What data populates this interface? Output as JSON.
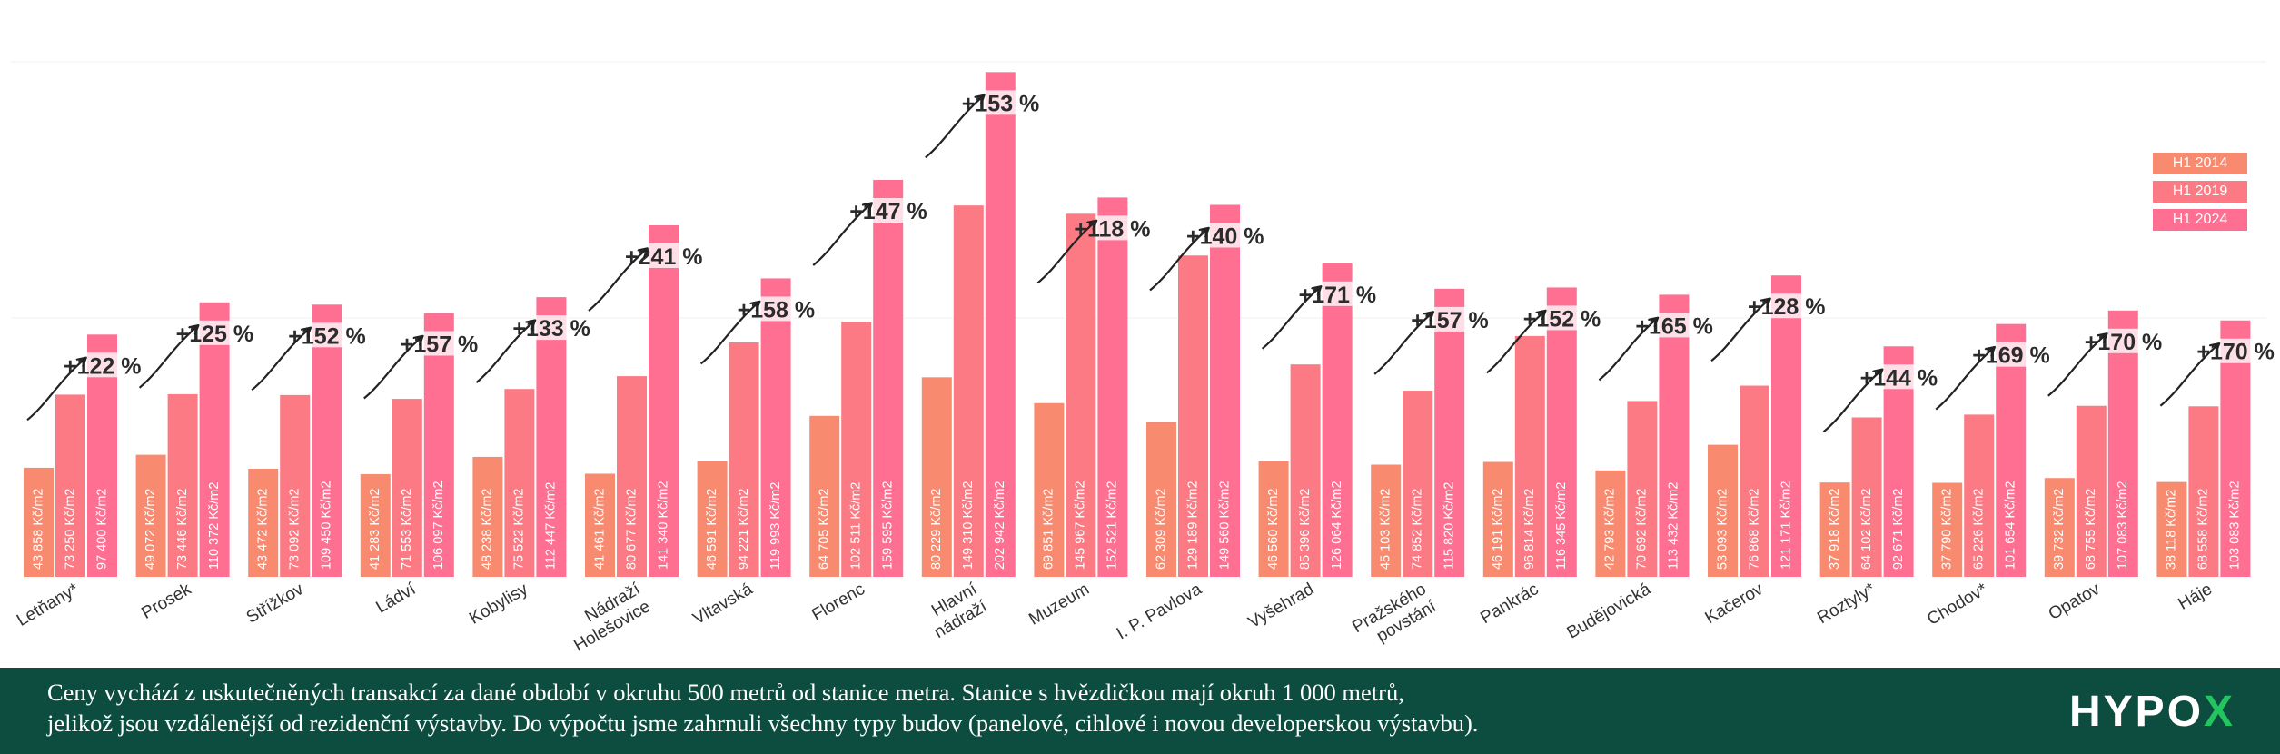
{
  "colors": {
    "h1_2014": "#f88a6f",
    "h1_2019": "#fb7a83",
    "h1_2024": "#fe6f92",
    "footer_bg": "#0d4d3f",
    "logo_accent": "#22c55e"
  },
  "legend": {
    "items": [
      "H1 2014",
      "H1 2019",
      "H1 2024"
    ]
  },
  "footer": {
    "line1": "Ceny vychází z uskutečněných transakcí za dané období v okruhu 500 metrů od stanice metra. Stanice s hvězdičkou mají okruh 1 000 metrů,",
    "line2": "jelikož jsou vzdálenější od rezidenční výstavby. Do výpočtu jsme zahrnuli všechny typy budov (panelové, cihlové i novou developerskou výstavbu)."
  },
  "logo": {
    "main": "HYPO",
    "accent": "X"
  },
  "chart_data": {
    "type": "bar",
    "unit": "Kč/m2",
    "categories": [
      "Letňany*",
      "Prosek",
      "Střížkov",
      "Ládví",
      "Kobylisy",
      "Nádraží Holešovice",
      "Vltavská",
      "Florenc",
      "Hlavní nádraží",
      "Muzeum",
      "I. P. Pavlova",
      "Vyšehrad",
      "Pražského povstání",
      "Pankrác",
      "Budějovická",
      "Kačerov",
      "Roztyly*",
      "Chodov*",
      "Opatov",
      "Háje"
    ],
    "series": [
      {
        "name": "H1 2014",
        "values": [
          43858,
          49072,
          43472,
          41283,
          48238,
          41461,
          46591,
          64705,
          80229,
          69851,
          62309,
          46560,
          45103,
          46191,
          42793,
          53093,
          37918,
          37790,
          39732,
          38118
        ],
        "labels": [
          "43 858 Kč/m2",
          "49 072 Kč/m2",
          "43 472 Kč/m2",
          "41 283 Kč/m2",
          "48 238 Kč/m2",
          "41 461 Kč/m2",
          "46 591 Kč/m2",
          "64 705 Kč/m2",
          "80 229 Kč/m2",
          "69 851 Kč/m2",
          "62 309 Kč/m2",
          "46 560 Kč/m2",
          "45 103 Kč/m2",
          "46 191 Kč/m2",
          "42 793 Kč/m2",
          "53 093 Kč/m2",
          "37 918 Kč/m2",
          "37 790 Kč/m2",
          "39 732 Kč/m2",
          "38 118 Kč/m2"
        ]
      },
      {
        "name": "H1 2019",
        "values": [
          73250,
          73446,
          73092,
          71553,
          75522,
          80677,
          94221,
          102511,
          149310,
          145967,
          129189,
          85396,
          74852,
          96814,
          70692,
          76868,
          64102,
          65226,
          68755,
          68558
        ],
        "labels": [
          "73 250 Kč/m2",
          "73 446 Kč/m2",
          "73 092 Kč/m2",
          "71 553 Kč/m2",
          "75 522 Kč/m2",
          "80 677 Kč/m2",
          "94 221 Kč/m2",
          "102 511 Kč/m2",
          "149 310 Kč/m2",
          "145 967 Kč/m2",
          "129 189 Kč/m2",
          "85 396 Kč/m2",
          "74 852 Kč/m2",
          "96 814 Kč/m2",
          "70 692 Kč/m2",
          "76 868 Kč/m2",
          "64 102 Kč/m2",
          "65 226 Kč/m2",
          "68 755 Kč/m2",
          "68 558 Kč/m2"
        ]
      },
      {
        "name": "H1 2024",
        "values": [
          97400,
          110372,
          109450,
          106097,
          112447,
          141340,
          119993,
          159595,
          202942,
          152521,
          149560,
          126064,
          115820,
          116345,
          113432,
          121171,
          92671,
          101654,
          107083,
          103083
        ],
        "labels": [
          "97 400 Kč/m2",
          "110 372 Kč/m2",
          "109 450 Kč/m2",
          "106 097 Kč/m2",
          "112 447 Kč/m2",
          "141 340 Kč/m2",
          "119 993 Kč/m2",
          "159 595 Kč/m2",
          "202 942 Kč/m2",
          "152 521 Kč/m2",
          "149 560 Kč/m2",
          "126 064 Kč/m2",
          "115 820 Kč/m2",
          "116 345 Kč/m2",
          "113 432 Kč/m2",
          "121 171 Kč/m2",
          "92 671 Kč/m2",
          "101 654 Kč/m2",
          "107 083 Kč/m2",
          "103 083 Kč/m2"
        ]
      }
    ],
    "growth_labels": [
      "122 %",
      "125 %",
      "152 %",
      "157 %",
      "133 %",
      "241 %",
      "158 %",
      "147 %",
      "153 %",
      "118 %",
      "140 %",
      "171 %",
      "157 %",
      "152 %",
      "165 %",
      "128 %",
      "144 %",
      "169 %",
      "170 %",
      "170 %"
    ],
    "growth_sign": "+",
    "ylim": [
      0,
      210000
    ],
    "grid": false,
    "legend_position": "right"
  }
}
